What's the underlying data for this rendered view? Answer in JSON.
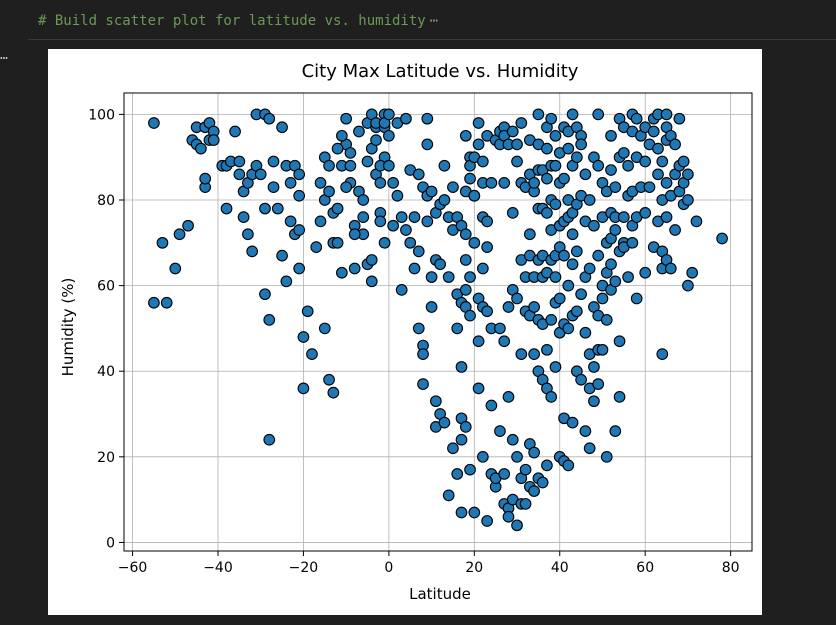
{
  "code_cell": {
    "comment_text": "# Build scatter plot for latitude vs. humidity",
    "collapsed_indicator": "⋯",
    "gutter_indicator": "…"
  },
  "chart_data": {
    "type": "scatter",
    "title": "City Max Latitude vs. Humidity",
    "xlabel": "Latitude",
    "ylabel": "Humidity (%)",
    "xlim": [
      -62,
      85
    ],
    "ylim": [
      -2,
      105
    ],
    "xticks": [
      -60,
      -40,
      -20,
      0,
      20,
      40,
      60,
      80
    ],
    "xtick_labels": [
      "−60",
      "−40",
      "−20",
      "0",
      "20",
      "40",
      "60",
      "80"
    ],
    "yticks": [
      0,
      20,
      40,
      60,
      80,
      100
    ],
    "ytick_labels": [
      "0",
      "20",
      "40",
      "60",
      "80",
      "100"
    ],
    "grid": true,
    "marker_color": "#1f77b4",
    "marker_edge_color": "#000000",
    "points": [
      [
        -55,
        98
      ],
      [
        -55,
        56
      ],
      [
        -53,
        70
      ],
      [
        -52,
        56
      ],
      [
        -50,
        64
      ],
      [
        -49,
        72
      ],
      [
        -47,
        74
      ],
      [
        -46,
        94
      ],
      [
        -45,
        97
      ],
      [
        -45,
        93
      ],
      [
        -44,
        92
      ],
      [
        -43,
        97
      ],
      [
        -42,
        98
      ],
      [
        -42,
        94
      ],
      [
        -43,
        83
      ],
      [
        -43,
        85
      ],
      [
        -41,
        96
      ],
      [
        -41,
        94
      ],
      [
        -39,
        88
      ],
      [
        -38,
        78
      ],
      [
        -38,
        88
      ],
      [
        -37,
        89
      ],
      [
        -36,
        96
      ],
      [
        -35,
        89
      ],
      [
        -35,
        86
      ],
      [
        -34,
        82
      ],
      [
        -34,
        76
      ],
      [
        -33,
        84
      ],
      [
        -33,
        72
      ],
      [
        -32,
        68
      ],
      [
        -32,
        86
      ],
      [
        -31,
        100
      ],
      [
        -31,
        88
      ],
      [
        -30,
        86
      ],
      [
        -29,
        100
      ],
      [
        -29,
        78
      ],
      [
        -28,
        99
      ],
      [
        -29,
        58
      ],
      [
        -28,
        52
      ],
      [
        -27,
        83
      ],
      [
        -27,
        89
      ],
      [
        -26,
        78
      ],
      [
        -25,
        97
      ],
      [
        -25,
        67
      ],
      [
        -24,
        88
      ],
      [
        -24,
        61
      ],
      [
        -23,
        84
      ],
      [
        -23,
        75
      ],
      [
        -22,
        72
      ],
      [
        -22,
        88
      ],
      [
        -21,
        86
      ],
      [
        -21,
        81
      ],
      [
        -21,
        73
      ],
      [
        -21,
        64
      ],
      [
        -20,
        48
      ],
      [
        -20,
        36
      ],
      [
        -28,
        24
      ],
      [
        -19,
        54
      ],
      [
        -18,
        44
      ],
      [
        -17,
        69
      ],
      [
        -16,
        84
      ],
      [
        -16,
        75
      ],
      [
        -15,
        90
      ],
      [
        -15,
        80
      ],
      [
        -14,
        88
      ],
      [
        -14,
        82
      ],
      [
        -13,
        77
      ],
      [
        -13,
        70
      ],
      [
        -12,
        78
      ],
      [
        -12,
        70
      ],
      [
        -11,
        63
      ],
      [
        -11,
        88
      ],
      [
        -10,
        93
      ],
      [
        -10,
        99
      ],
      [
        -9,
        91
      ],
      [
        -9,
        84
      ],
      [
        -8,
        74
      ],
      [
        -8,
        64
      ],
      [
        -7,
        82
      ],
      [
        -6,
        80
      ],
      [
        -6,
        72
      ],
      [
        -5,
        89
      ],
      [
        -5,
        98
      ],
      [
        -4,
        92
      ],
      [
        -4,
        100
      ],
      [
        -3,
        97
      ],
      [
        -3,
        94
      ],
      [
        -3,
        86
      ],
      [
        -2,
        84
      ],
      [
        -2,
        77
      ],
      [
        -2,
        75
      ],
      [
        -1,
        100
      ],
      [
        -1,
        97
      ],
      [
        -1,
        90
      ],
      [
        -1,
        70
      ],
      [
        -15,
        50
      ],
      [
        -14,
        38
      ],
      [
        -13,
        35
      ],
      [
        -12,
        92
      ],
      [
        -11,
        95
      ],
      [
        -10,
        83
      ],
      [
        -9,
        88
      ],
      [
        -8,
        72
      ],
      [
        -7,
        96
      ],
      [
        -6,
        76
      ],
      [
        -5,
        65
      ],
      [
        -4,
        61
      ],
      [
        -4,
        66
      ],
      [
        -3,
        98
      ],
      [
        -2,
        88
      ],
      [
        -1,
        98
      ],
      [
        0,
        100
      ],
      [
        0,
        95
      ],
      [
        0,
        88
      ],
      [
        1,
        84
      ],
      [
        1,
        74
      ],
      [
        2,
        98
      ],
      [
        2,
        81
      ],
      [
        3,
        59
      ],
      [
        3,
        76
      ],
      [
        4,
        99
      ],
      [
        4,
        73
      ],
      [
        5,
        87
      ],
      [
        5,
        70
      ],
      [
        6,
        76
      ],
      [
        6,
        64
      ],
      [
        7,
        86
      ],
      [
        7,
        68
      ],
      [
        7,
        50
      ],
      [
        8,
        46
      ],
      [
        8,
        44
      ],
      [
        8,
        37
      ],
      [
        8,
        83
      ],
      [
        9,
        99
      ],
      [
        9,
        93
      ],
      [
        9,
        81
      ],
      [
        9,
        75
      ],
      [
        10,
        82
      ],
      [
        10,
        62
      ],
      [
        10,
        55
      ],
      [
        11,
        66
      ],
      [
        11,
        77
      ],
      [
        11,
        27
      ],
      [
        11,
        33
      ],
      [
        12,
        79
      ],
      [
        12,
        65
      ],
      [
        12,
        30
      ],
      [
        13,
        88
      ],
      [
        13,
        80
      ],
      [
        13,
        28
      ],
      [
        14,
        76
      ],
      [
        14,
        62
      ],
      [
        14,
        11
      ],
      [
        15,
        83
      ],
      [
        15,
        73
      ],
      [
        15,
        22
      ],
      [
        16,
        76
      ],
      [
        16,
        50
      ],
      [
        16,
        58
      ],
      [
        16,
        16
      ],
      [
        17,
        74
      ],
      [
        17,
        56
      ],
      [
        17,
        29
      ],
      [
        17,
        24
      ],
      [
        17,
        41
      ],
      [
        17,
        7
      ],
      [
        18,
        95
      ],
      [
        18,
        82
      ],
      [
        18,
        72
      ],
      [
        18,
        66
      ],
      [
        18,
        59
      ],
      [
        18,
        55
      ],
      [
        18,
        27
      ],
      [
        19,
        85
      ],
      [
        19,
        90
      ],
      [
        19,
        88
      ],
      [
        19,
        62
      ],
      [
        19,
        53
      ],
      [
        19,
        17
      ],
      [
        20,
        81
      ],
      [
        20,
        90
      ],
      [
        20,
        81
      ],
      [
        20,
        70
      ],
      [
        20,
        7
      ],
      [
        21,
        98
      ],
      [
        21,
        93
      ],
      [
        21,
        57
      ],
      [
        21,
        47
      ],
      [
        21,
        36
      ],
      [
        22,
        89
      ],
      [
        22,
        84
      ],
      [
        22,
        76
      ],
      [
        22,
        64
      ],
      [
        22,
        55
      ],
      [
        22,
        20
      ],
      [
        23,
        95
      ],
      [
        23,
        75
      ],
      [
        23,
        69
      ],
      [
        23,
        54
      ],
      [
        23,
        5
      ],
      [
        24,
        84
      ],
      [
        24,
        50
      ],
      [
        24,
        32
      ],
      [
        24,
        16
      ],
      [
        25,
        94
      ],
      [
        25,
        13
      ],
      [
        25,
        15
      ],
      [
        26,
        96
      ],
      [
        26,
        93
      ],
      [
        26,
        50
      ],
      [
        26,
        26
      ],
      [
        27,
        97
      ],
      [
        27,
        95
      ],
      [
        27,
        84
      ],
      [
        27,
        47
      ],
      [
        27,
        16
      ],
      [
        27,
        9
      ],
      [
        28,
        93
      ],
      [
        28,
        55
      ],
      [
        28,
        34
      ],
      [
        28,
        8
      ],
      [
        28,
        6
      ],
      [
        29,
        96
      ],
      [
        29,
        77
      ],
      [
        29,
        59
      ],
      [
        29,
        24
      ],
      [
        29,
        10
      ],
      [
        30,
        93
      ],
      [
        30,
        89
      ],
      [
        30,
        57
      ],
      [
        30,
        20
      ],
      [
        30,
        4
      ],
      [
        31,
        98
      ],
      [
        31,
        84
      ],
      [
        31,
        66
      ],
      [
        31,
        44
      ],
      [
        31,
        15
      ],
      [
        31,
        9
      ],
      [
        32,
        83
      ],
      [
        32,
        62
      ],
      [
        32,
        54
      ],
      [
        32,
        9
      ],
      [
        32,
        17
      ],
      [
        33,
        94
      ],
      [
        33,
        86
      ],
      [
        33,
        72
      ],
      [
        33,
        67
      ],
      [
        33,
        53
      ],
      [
        33,
        23
      ],
      [
        33,
        13
      ],
      [
        34,
        82
      ],
      [
        34,
        84
      ],
      [
        34,
        62
      ],
      [
        34,
        55
      ],
      [
        34,
        44
      ],
      [
        34,
        21
      ],
      [
        34,
        12
      ],
      [
        35,
        100
      ],
      [
        35,
        93
      ],
      [
        35,
        87
      ],
      [
        35,
        78
      ],
      [
        35,
        66
      ],
      [
        35,
        52
      ],
      [
        35,
        40
      ],
      [
        35,
        15
      ],
      [
        36,
        87
      ],
      [
        36,
        78
      ],
      [
        36,
        67
      ],
      [
        36,
        62
      ],
      [
        36,
        51
      ],
      [
        36,
        38
      ],
      [
        36,
        14
      ],
      [
        37,
        97
      ],
      [
        37,
        92
      ],
      [
        37,
        85
      ],
      [
        37,
        77
      ],
      [
        37,
        63
      ],
      [
        37,
        45
      ],
      [
        37,
        36
      ],
      [
        37,
        18
      ],
      [
        38,
        99
      ],
      [
        38,
        88
      ],
      [
        38,
        80
      ],
      [
        38,
        73
      ],
      [
        38,
        66
      ],
      [
        38,
        52
      ],
      [
        38,
        34
      ],
      [
        39,
        95
      ],
      [
        39,
        88
      ],
      [
        39,
        79
      ],
      [
        39,
        67
      ],
      [
        39,
        62
      ],
      [
        39,
        56
      ],
      [
        39,
        41
      ],
      [
        40,
        91
      ],
      [
        40,
        84
      ],
      [
        40,
        74
      ],
      [
        40,
        69
      ],
      [
        40,
        57
      ],
      [
        40,
        49
      ],
      [
        40,
        20
      ],
      [
        41,
        97
      ],
      [
        41,
        85
      ],
      [
        41,
        75
      ],
      [
        41,
        67
      ],
      [
        41,
        51
      ],
      [
        41,
        29
      ],
      [
        41,
        19
      ],
      [
        42,
        96
      ],
      [
        42,
        92
      ],
      [
        42,
        80
      ],
      [
        42,
        76
      ],
      [
        42,
        60
      ],
      [
        42,
        50
      ],
      [
        42,
        18
      ],
      [
        43,
        100
      ],
      [
        43,
        88
      ],
      [
        43,
        77
      ],
      [
        43,
        72
      ],
      [
        43,
        65
      ],
      [
        43,
        53
      ],
      [
        43,
        28
      ],
      [
        44,
        97
      ],
      [
        44,
        90
      ],
      [
        44,
        79
      ],
      [
        44,
        68
      ],
      [
        44,
        54
      ],
      [
        44,
        40
      ],
      [
        45,
        95
      ],
      [
        45,
        93
      ],
      [
        45,
        81
      ],
      [
        45,
        58
      ],
      [
        45,
        38
      ],
      [
        46,
        86
      ],
      [
        46,
        75
      ],
      [
        46,
        62
      ],
      [
        46,
        49
      ],
      [
        46,
        26
      ],
      [
        47,
        80
      ],
      [
        47,
        64
      ],
      [
        47,
        44
      ],
      [
        47,
        36
      ],
      [
        47,
        22
      ],
      [
        48,
        90
      ],
      [
        48,
        74
      ],
      [
        48,
        55
      ],
      [
        48,
        41
      ],
      [
        48,
        33
      ],
      [
        49,
        100
      ],
      [
        49,
        88
      ],
      [
        49,
        67
      ],
      [
        49,
        53
      ],
      [
        49,
        45
      ],
      [
        49,
        37
      ],
      [
        50,
        84
      ],
      [
        50,
        76
      ],
      [
        50,
        57
      ],
      [
        50,
        60
      ],
      [
        50,
        45
      ],
      [
        51,
        82
      ],
      [
        51,
        70
      ],
      [
        51,
        63
      ],
      [
        51,
        52
      ],
      [
        51,
        20
      ],
      [
        52,
        95
      ],
      [
        52,
        87
      ],
      [
        52,
        77
      ],
      [
        52,
        71
      ],
      [
        52,
        65
      ],
      [
        52,
        59
      ],
      [
        53,
        83
      ],
      [
        53,
        76
      ],
      [
        53,
        73
      ],
      [
        53,
        61
      ],
      [
        53,
        26
      ],
      [
        54,
        99
      ],
      [
        54,
        90
      ],
      [
        54,
        68
      ],
      [
        54,
        47
      ],
      [
        54,
        34
      ],
      [
        55,
        97
      ],
      [
        55,
        91
      ],
      [
        55,
        76
      ],
      [
        55,
        70
      ],
      [
        55,
        69
      ],
      [
        56,
        88
      ],
      [
        56,
        81
      ],
      [
        56,
        62
      ],
      [
        57,
        100
      ],
      [
        57,
        96
      ],
      [
        57,
        82
      ],
      [
        57,
        74
      ],
      [
        57,
        70
      ],
      [
        58,
        99
      ],
      [
        58,
        90
      ],
      [
        58,
        76
      ],
      [
        58,
        57
      ],
      [
        59,
        95
      ],
      [
        59,
        83
      ],
      [
        60,
        97
      ],
      [
        60,
        89
      ],
      [
        60,
        77
      ],
      [
        60,
        63
      ],
      [
        61,
        93
      ],
      [
        61,
        83
      ],
      [
        62,
        99
      ],
      [
        62,
        96
      ],
      [
        62,
        69
      ],
      [
        63,
        100
      ],
      [
        63,
        92
      ],
      [
        63,
        86
      ],
      [
        63,
        75
      ],
      [
        64,
        89
      ],
      [
        64,
        80
      ],
      [
        64,
        68
      ],
      [
        64,
        64
      ],
      [
        64,
        44
      ],
      [
        65,
        100
      ],
      [
        65,
        97
      ],
      [
        65,
        94
      ],
      [
        65,
        84
      ],
      [
        65,
        76
      ],
      [
        65,
        66
      ],
      [
        66,
        95
      ],
      [
        66,
        81
      ],
      [
        66,
        64
      ],
      [
        67,
        93
      ],
      [
        67,
        86
      ],
      [
        67,
        73
      ],
      [
        68,
        99
      ],
      [
        68,
        88
      ],
      [
        68,
        82
      ],
      [
        69,
        89
      ],
      [
        69,
        84
      ],
      [
        69,
        79
      ],
      [
        70,
        86
      ],
      [
        70,
        80
      ],
      [
        70,
        60
      ],
      [
        71,
        63
      ],
      [
        72,
        75
      ],
      [
        78,
        71
      ]
    ]
  }
}
